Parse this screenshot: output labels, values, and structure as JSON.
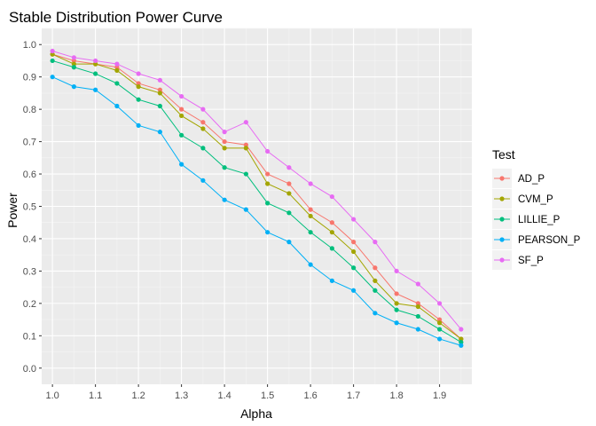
{
  "chart_data": {
    "type": "line",
    "title": "Stable Distribution Power Curve",
    "xlabel": "Alpha",
    "ylabel": "Power",
    "xlim": [
      0.975,
      1.975
    ],
    "ylim": [
      -0.05,
      1.05
    ],
    "x_ticks": [
      "1.0",
      "1.1",
      "1.2",
      "1.3",
      "1.4",
      "1.5",
      "1.6",
      "1.7",
      "1.8",
      "1.9"
    ],
    "y_ticks": [
      "0.0",
      "0.1",
      "0.2",
      "0.3",
      "0.4",
      "0.5",
      "0.6",
      "0.7",
      "0.8",
      "0.9",
      "1.0"
    ],
    "grid": true,
    "legend": {
      "title": "Test",
      "position": "right"
    },
    "x": [
      1.0,
      1.05,
      1.1,
      1.15,
      1.2,
      1.25,
      1.3,
      1.35,
      1.4,
      1.45,
      1.5,
      1.55,
      1.6,
      1.65,
      1.7,
      1.75,
      1.8,
      1.85,
      1.9,
      1.95
    ],
    "series": [
      {
        "name": "AD_P",
        "color": "#F8766D",
        "values": [
          0.97,
          0.95,
          0.94,
          0.93,
          0.88,
          0.86,
          0.8,
          0.76,
          0.7,
          0.69,
          0.6,
          0.57,
          0.49,
          0.45,
          0.39,
          0.31,
          0.23,
          0.2,
          0.15,
          0.09
        ]
      },
      {
        "name": "CVM_P",
        "color": "#A3A500",
        "values": [
          0.97,
          0.94,
          0.94,
          0.92,
          0.87,
          0.85,
          0.78,
          0.74,
          0.68,
          0.68,
          0.57,
          0.54,
          0.47,
          0.42,
          0.36,
          0.27,
          0.2,
          0.19,
          0.14,
          0.09
        ]
      },
      {
        "name": "LILLIE_P",
        "color": "#00BF7D",
        "values": [
          0.95,
          0.93,
          0.91,
          0.88,
          0.83,
          0.81,
          0.72,
          0.68,
          0.62,
          0.6,
          0.51,
          0.48,
          0.42,
          0.37,
          0.31,
          0.24,
          0.18,
          0.16,
          0.12,
          0.08
        ]
      },
      {
        "name": "PEARSON_P",
        "color": "#00B0F6",
        "values": [
          0.9,
          0.87,
          0.86,
          0.81,
          0.75,
          0.73,
          0.63,
          0.58,
          0.52,
          0.49,
          0.42,
          0.39,
          0.32,
          0.27,
          0.24,
          0.17,
          0.14,
          0.12,
          0.09,
          0.07
        ]
      },
      {
        "name": "SF_P",
        "color": "#E76BF3",
        "values": [
          0.98,
          0.96,
          0.95,
          0.94,
          0.91,
          0.89,
          0.84,
          0.8,
          0.73,
          0.76,
          0.67,
          0.62,
          0.57,
          0.53,
          0.46,
          0.39,
          0.3,
          0.26,
          0.2,
          0.12
        ]
      }
    ]
  }
}
